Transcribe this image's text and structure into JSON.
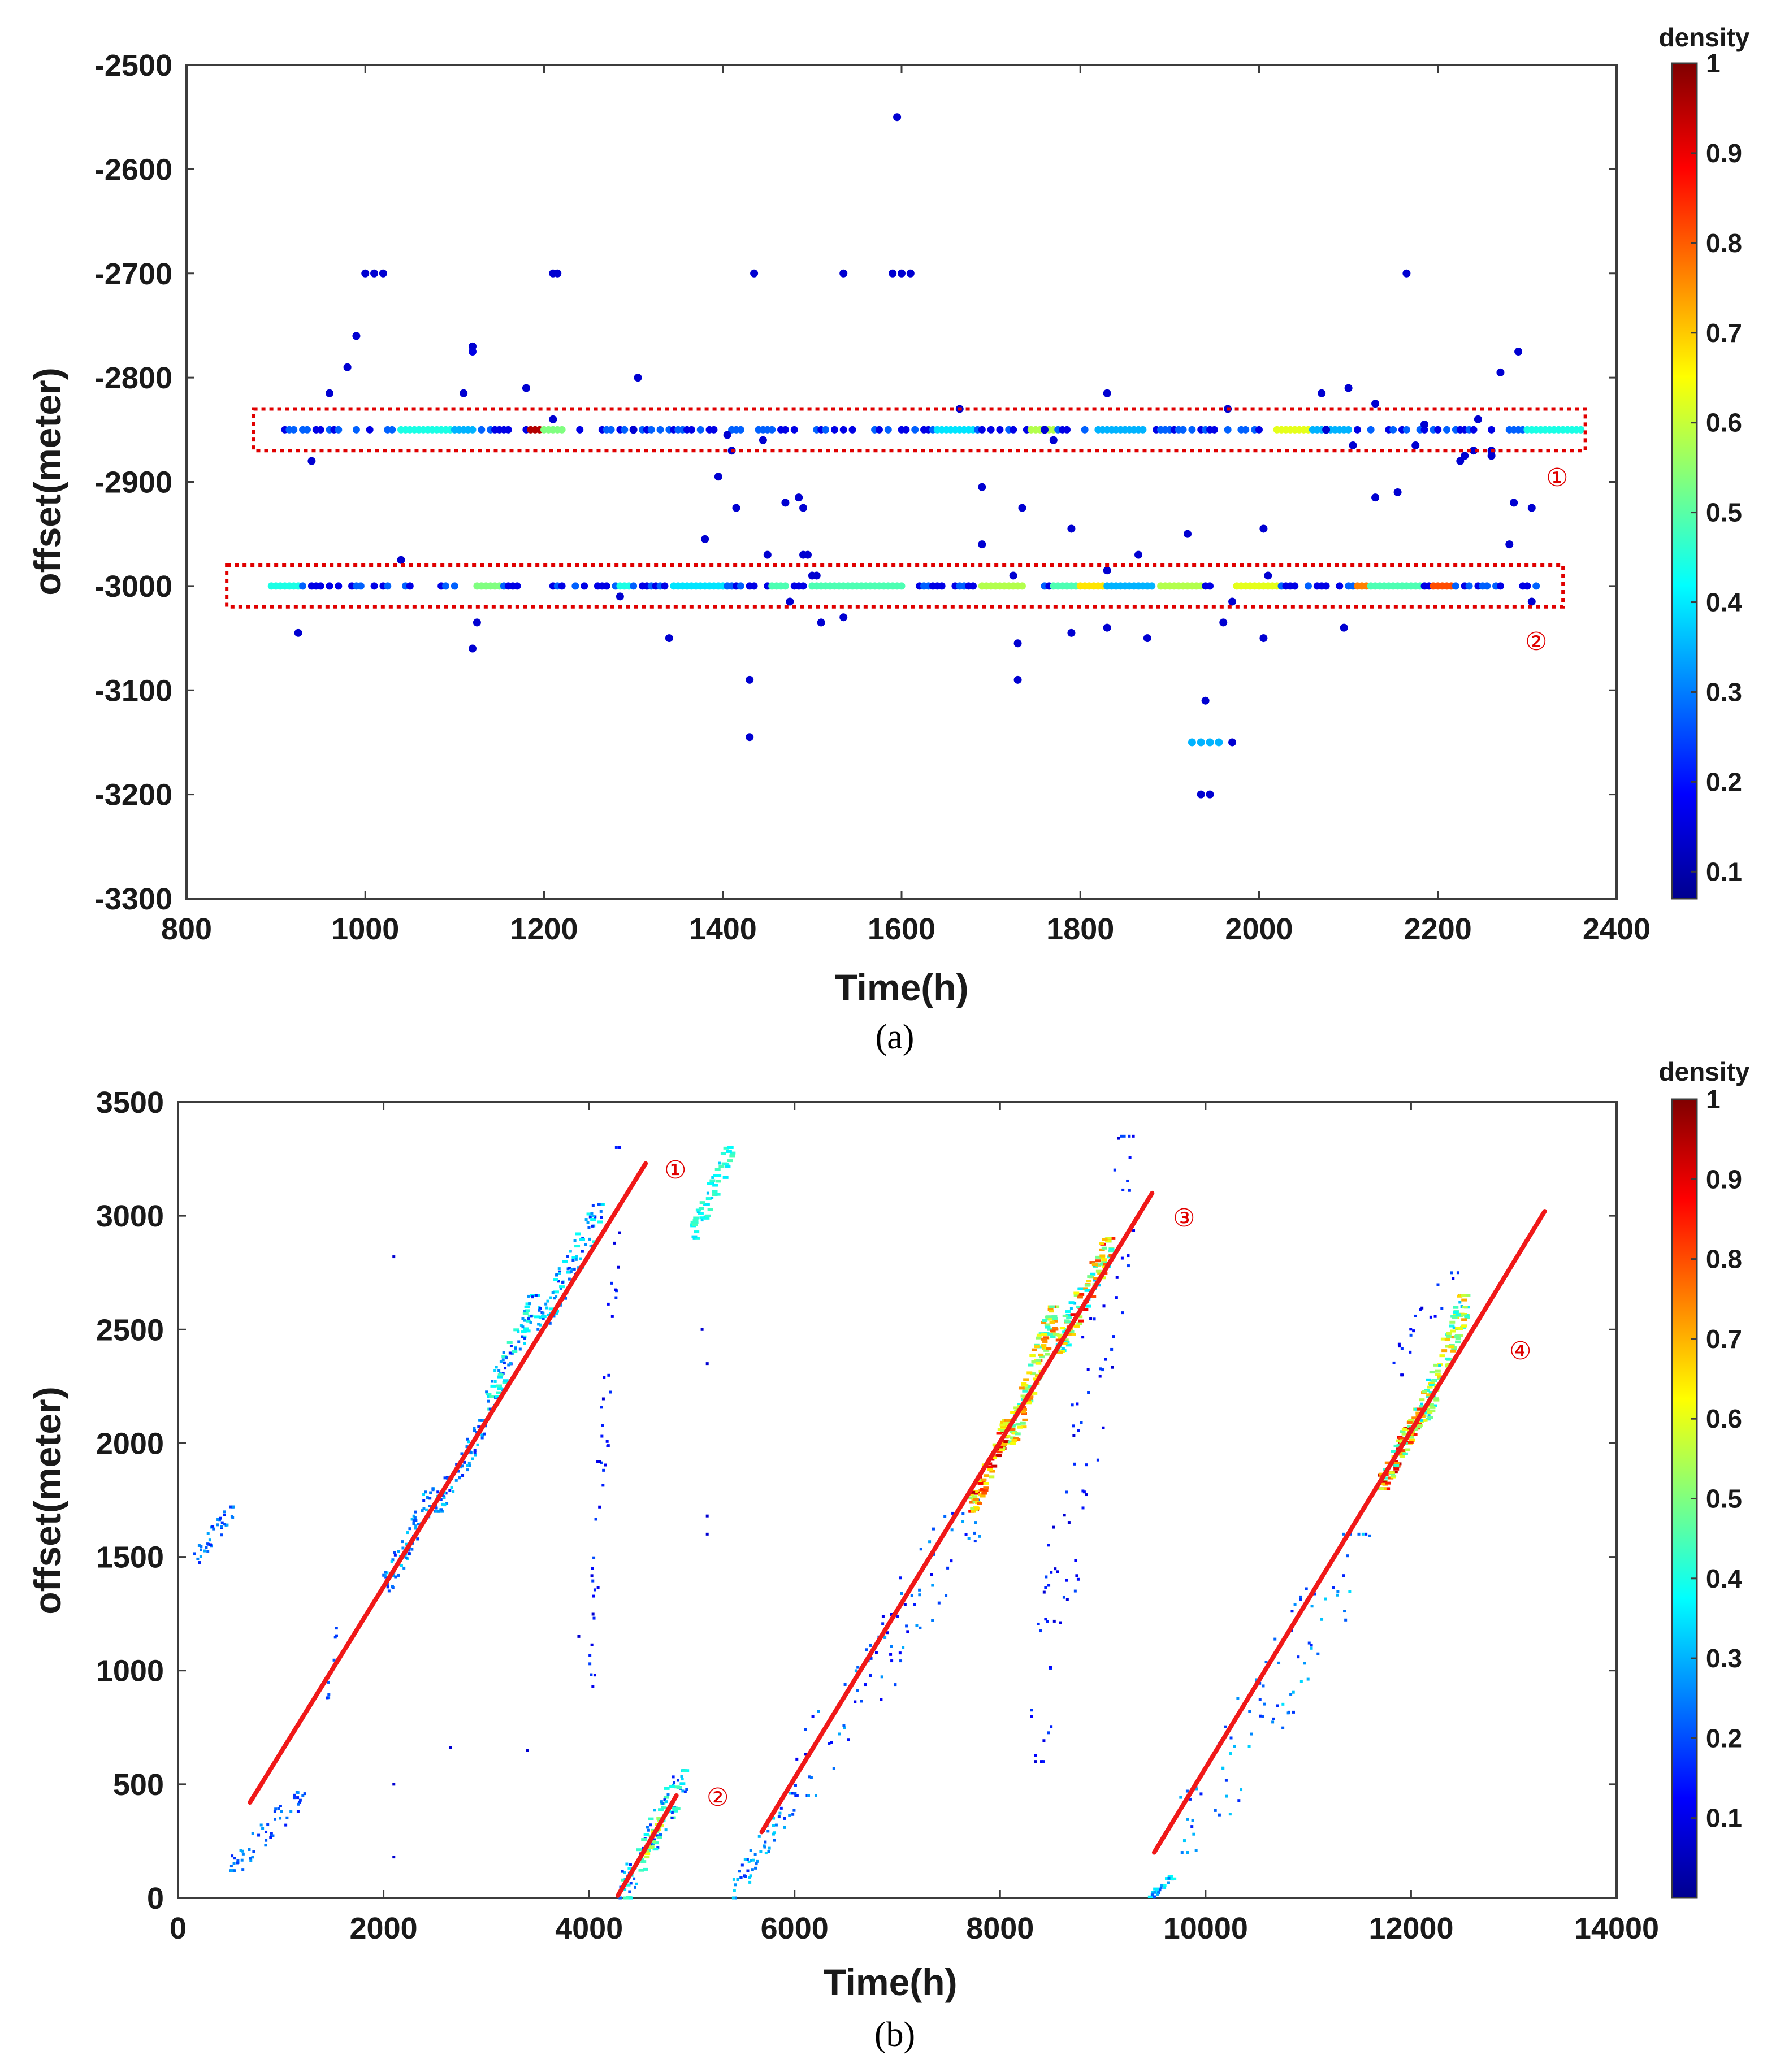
{
  "chart_data": [
    {
      "type": "scatter",
      "panel_label": "(a)",
      "xlabel": "Time(h)",
      "ylabel": "offset(meter)",
      "xlim": [
        800,
        2400
      ],
      "ylim": [
        -3300,
        -2500
      ],
      "xticks": [
        800,
        1000,
        1200,
        1400,
        1600,
        1800,
        2000,
        2200,
        2400
      ],
      "yticks": [
        -2500,
        -2600,
        -2700,
        -2800,
        -2900,
        -3000,
        -3100,
        -3200,
        -3300
      ],
      "colorbar": {
        "title": "density",
        "ticks": [
          1,
          0.9,
          0.8,
          0.7,
          0.6,
          0.5,
          0.4,
          0.3,
          0.2,
          0.1
        ],
        "range": [
          0.07,
          1.0
        ]
      },
      "highlight_boxes": [
        {
          "label": "①",
          "x": [
            875,
            2365
          ],
          "y": [
            -2830,
            -2870
          ]
        },
        {
          "label": "②",
          "x": [
            845,
            2340
          ],
          "y": [
            -2980,
            -3020
          ]
        }
      ],
      "bands": [
        {
          "y": -2850,
          "x_start": 910,
          "x_end": 2360,
          "spacing": 5,
          "segments": [
            [
              1040,
              1100,
              0.4
            ],
            [
              1100,
              1120,
              0.3
            ],
            [
              1185,
              1210,
              0.95
            ],
            [
              1745,
              1770,
              0.55
            ],
            [
              2020,
              2060,
              0.6
            ],
            [
              2060,
              2100,
              0.3
            ],
            [
              2300,
              2360,
              0.4
            ],
            [
              1640,
              1680,
              0.35
            ],
            [
              1820,
              1870,
              0.3
            ],
            [
              1200,
              1222,
              0.5
            ]
          ]
        },
        {
          "y": -3000,
          "x_start": 895,
          "x_end": 2310,
          "spacing": 5,
          "segments": [
            [
              895,
              925,
              0.4
            ],
            [
              1125,
              1150,
              0.5
            ],
            [
              1345,
              1400,
              0.35
            ],
            [
              1500,
              1600,
              0.45
            ],
            [
              1690,
              1735,
              0.55
            ],
            [
              1770,
              1800,
              0.45
            ],
            [
              1800,
              1830,
              0.65
            ],
            [
              1830,
              1880,
              0.3
            ],
            [
              1890,
              1935,
              0.55
            ],
            [
              1975,
              2020,
              0.6
            ],
            [
              2110,
              2125,
              0.75
            ],
            [
              2125,
              2180,
              0.45
            ],
            [
              2195,
              2215,
              0.8
            ],
            [
              1455,
              1470,
              0.45
            ],
            [
              1285,
              1295,
              0.4
            ]
          ]
        }
      ],
      "points": [
        [
          1000,
          -2700,
          0.08
        ],
        [
          1010,
          -2700,
          0.08
        ],
        [
          1020,
          -2700,
          0.08
        ],
        [
          990,
          -2760,
          0.08
        ],
        [
          980,
          -2790,
          0.08
        ],
        [
          1120,
          -2775,
          0.1
        ],
        [
          1120,
          -2770,
          0.08
        ],
        [
          1110,
          -2815,
          0.08
        ],
        [
          1180,
          -2810,
          0.08
        ],
        [
          1210,
          -2840,
          0.08
        ],
        [
          1215,
          -2700,
          0.08
        ],
        [
          1210,
          -2700,
          0.08
        ],
        [
          1305,
          -2800,
          0.08
        ],
        [
          1300,
          -2850,
          0.08
        ],
        [
          960,
          -2815,
          0.08
        ],
        [
          940,
          -2880,
          0.08
        ],
        [
          925,
          -3045,
          0.08
        ],
        [
          1120,
          -3060,
          0.08
        ],
        [
          1125,
          -3035,
          0.08
        ],
        [
          1040,
          -2975,
          0.08
        ],
        [
          1380,
          -2955,
          0.08
        ],
        [
          1395,
          -2895,
          0.08
        ],
        [
          1405,
          -2855,
          0.08
        ],
        [
          1410,
          -2870,
          0.08
        ],
        [
          1415,
          -2925,
          0.08
        ],
        [
          1435,
          -2700,
          0.08
        ],
        [
          1445,
          -2860,
          0.08
        ],
        [
          1450,
          -2970,
          0.08
        ],
        [
          1430,
          -3090,
          0.08
        ],
        [
          1430,
          -3145,
          0.08
        ],
        [
          1340,
          -3050,
          0.08
        ],
        [
          1285,
          -3010,
          0.08
        ],
        [
          1470,
          -2920,
          0.08
        ],
        [
          1485,
          -2915,
          0.08
        ],
        [
          1490,
          -2925,
          0.08
        ],
        [
          1490,
          -2970,
          0.08
        ],
        [
          1495,
          -2970,
          0.08
        ],
        [
          1500,
          -2990,
          0.08
        ],
        [
          1505,
          -2990,
          0.08
        ],
        [
          1510,
          -3035,
          0.08
        ],
        [
          1475,
          -3015,
          0.08
        ],
        [
          1535,
          -3030,
          0.08
        ],
        [
          1535,
          -2700,
          0.08
        ],
        [
          1595,
          -2550,
          0.08
        ],
        [
          1590,
          -2700,
          0.08
        ],
        [
          1600,
          -2700,
          0.08
        ],
        [
          1610,
          -2700,
          0.08
        ],
        [
          1665,
          -2830,
          0.08
        ],
        [
          1690,
          -2905,
          0.08
        ],
        [
          1690,
          -2960,
          0.08
        ],
        [
          1725,
          -2990,
          0.08
        ],
        [
          1730,
          -3055,
          0.08
        ],
        [
          1730,
          -3090,
          0.08
        ],
        [
          1735,
          -2925,
          0.08
        ],
        [
          1760,
          -2850,
          0.08
        ],
        [
          1770,
          -2860,
          0.08
        ],
        [
          1790,
          -2945,
          0.08
        ],
        [
          1790,
          -3045,
          0.08
        ],
        [
          1830,
          -2815,
          0.08
        ],
        [
          1830,
          -2985,
          0.08
        ],
        [
          1830,
          -3040,
          0.08
        ],
        [
          1865,
          -2970,
          0.08
        ],
        [
          1875,
          -3050,
          0.08
        ],
        [
          1920,
          -2950,
          0.08
        ],
        [
          1940,
          -3110,
          0.08
        ],
        [
          1925,
          -3150,
          0.3
        ],
        [
          1935,
          -3150,
          0.3
        ],
        [
          1945,
          -3150,
          0.3
        ],
        [
          1955,
          -3150,
          0.3
        ],
        [
          1970,
          -3150,
          0.08
        ],
        [
          1935,
          -3200,
          0.08
        ],
        [
          1945,
          -3200,
          0.08
        ],
        [
          1960,
          -3035,
          0.08
        ],
        [
          1965,
          -2830,
          0.08
        ],
        [
          1970,
          -3015,
          0.08
        ],
        [
          2005,
          -2945,
          0.08
        ],
        [
          2010,
          -2990,
          0.08
        ],
        [
          2005,
          -3050,
          0.08
        ],
        [
          2070,
          -2815,
          0.08
        ],
        [
          2075,
          -2850,
          0.08
        ],
        [
          2095,
          -3040,
          0.08
        ],
        [
          2100,
          -2810,
          0.08
        ],
        [
          2105,
          -2865,
          0.08
        ],
        [
          2130,
          -2825,
          0.08
        ],
        [
          2130,
          -2915,
          0.08
        ],
        [
          2155,
          -2910,
          0.08
        ],
        [
          2165,
          -2700,
          0.08
        ],
        [
          2175,
          -2865,
          0.08
        ],
        [
          2185,
          -2845,
          0.08
        ],
        [
          2225,
          -2880,
          0.08
        ],
        [
          2230,
          -2875,
          0.08
        ],
        [
          2240,
          -2870,
          0.08
        ],
        [
          2245,
          -2840,
          0.08
        ],
        [
          2260,
          -2870,
          0.08
        ],
        [
          2260,
          -2875,
          0.08
        ],
        [
          2270,
          -2795,
          0.08
        ],
        [
          2290,
          -2775,
          0.08
        ],
        [
          2285,
          -2920,
          0.08
        ],
        [
          2280,
          -2960,
          0.08
        ],
        [
          2305,
          -2925,
          0.08
        ],
        [
          2305,
          -3015,
          0.08
        ]
      ]
    },
    {
      "type": "scatter",
      "panel_label": "(b)",
      "xlabel": "Time(h)",
      "ylabel": "offset(meter)",
      "xlim": [
        0,
        14000
      ],
      "ylim": [
        0,
        3500
      ],
      "xticks": [
        0,
        2000,
        4000,
        6000,
        8000,
        10000,
        12000,
        14000
      ],
      "yticks": [
        3500,
        3000,
        2500,
        2000,
        1500,
        1000,
        500,
        0
      ],
      "colorbar": {
        "title": "density",
        "ticks": [
          1,
          0.9,
          0.8,
          0.7,
          0.6,
          0.5,
          0.4,
          0.3,
          0.2,
          0.1
        ],
        "range": [
          0.0,
          1.0
        ]
      },
      "trend_lines": [
        {
          "label": "①",
          "x": [
            700,
            4550
          ],
          "y": [
            420,
            3230
          ]
        },
        {
          "label": "②",
          "x": [
            4280,
            4850
          ],
          "y": [
            10,
            450
          ]
        },
        {
          "label": "③",
          "x": [
            5680,
            9480
          ],
          "y": [
            290,
            3100
          ]
        },
        {
          "label": "④",
          "x": [
            9500,
            13300
          ],
          "y": [
            200,
            3020
          ]
        }
      ],
      "clusters": [
        {
          "x": [
            100,
            550
          ],
          "y": [
            1450,
            1720
          ],
          "n": 40,
          "d": [
            0.15,
            0.3
          ]
        },
        {
          "x": [
            500,
            1250
          ],
          "y": [
            120,
            480
          ],
          "n": 55,
          "d": [
            0.15,
            0.3
          ]
        },
        {
          "x": [
            1450,
            1550
          ],
          "y": [
            880,
            1200
          ],
          "n": 10,
          "d": [
            0.15,
            0.25
          ]
        },
        {
          "x": [
            2000,
            2500
          ],
          "y": [
            1350,
            1800
          ],
          "n": 80,
          "d": [
            0.15,
            0.35
          ]
        },
        {
          "x": [
            2500,
            3000
          ],
          "y": [
            1700,
            2100
          ],
          "n": 80,
          "d": [
            0.15,
            0.35
          ]
        },
        {
          "x": [
            3000,
            3500
          ],
          "y": [
            2150,
            2650
          ],
          "n": 80,
          "d": [
            0.15,
            0.45
          ]
        },
        {
          "x": [
            3500,
            4150
          ],
          "y": [
            2500,
            3050
          ],
          "n": 100,
          "d": [
            0.15,
            0.4
          ]
        },
        {
          "x": [
            4000,
            4300
          ],
          "y": [
            850,
            3300
          ],
          "n": 45,
          "d": [
            0.08,
            0.2
          ]
        },
        {
          "x": [
            4300,
            4950
          ],
          "y": [
            0,
            560
          ],
          "n": 100,
          "d": [
            0.15,
            0.45
          ]
        },
        {
          "x": [
            4550,
            4700
          ],
          "y": [
            180,
            350
          ],
          "n": 25,
          "d": [
            0.45,
            0.65
          ]
        },
        {
          "x": [
            5000,
            5400
          ],
          "y": [
            2900,
            3300
          ],
          "n": 55,
          "d": [
            0.3,
            0.45
          ]
        },
        {
          "x": [
            5400,
            6000
          ],
          "y": [
            0,
            460
          ],
          "n": 60,
          "d": [
            0.15,
            0.35
          ]
        },
        {
          "x": [
            6000,
            7800
          ],
          "y": [
            450,
            1750
          ],
          "n": 90,
          "d": [
            0.1,
            0.3
          ]
        },
        {
          "x": [
            7700,
            8100
          ],
          "y": [
            1700,
            2100
          ],
          "n": 90,
          "d": [
            0.5,
            0.95
          ]
        },
        {
          "x": [
            8100,
            8550
          ],
          "y": [
            2000,
            2600
          ],
          "n": 130,
          "d": [
            0.4,
            0.8
          ]
        },
        {
          "x": [
            8550,
            9100
          ],
          "y": [
            2400,
            2900
          ],
          "n": 120,
          "d": [
            0.3,
            0.9
          ]
        },
        {
          "x": [
            8300,
            9300
          ],
          "y": [
            600,
            3350
          ],
          "n": 80,
          "d": [
            0.08,
            0.2
          ]
        },
        {
          "x": [
            9450,
            9700
          ],
          "y": [
            0,
            100
          ],
          "n": 25,
          "d": [
            0.2,
            0.4
          ]
        },
        {
          "x": [
            9700,
            11600
          ],
          "y": [
            200,
            1600
          ],
          "n": 90,
          "d": [
            0.15,
            0.35
          ]
        },
        {
          "x": [
            11700,
            12100
          ],
          "y": [
            1800,
            2150
          ],
          "n": 110,
          "d": [
            0.4,
            0.95
          ]
        },
        {
          "x": [
            12100,
            12550
          ],
          "y": [
            2100,
            2650
          ],
          "n": 120,
          "d": [
            0.3,
            0.75
          ]
        },
        {
          "x": [
            11800,
            12500
          ],
          "y": [
            2300,
            2800
          ],
          "n": 20,
          "d": [
            0.08,
            0.2
          ]
        }
      ],
      "points": [
        [
          2100,
          2820
        ],
        [
          2100,
          500
        ],
        [
          2100,
          180
        ],
        [
          2650,
          660
        ],
        [
          3400,
          650
        ],
        [
          5100,
          2500
        ],
        [
          5150,
          2350
        ],
        [
          5150,
          1680
        ],
        [
          5150,
          1600
        ],
        [
          3900,
          1150
        ]
      ]
    }
  ],
  "annotations": {
    "a_box1": "①",
    "a_box2": "②",
    "b_line1": "①",
    "b_line2": "②",
    "b_line3": "③",
    "b_line4": "④"
  },
  "colors": {
    "highlight": "#e00000",
    "trend_line": "#f01818",
    "axis": "#3c3c3c"
  }
}
